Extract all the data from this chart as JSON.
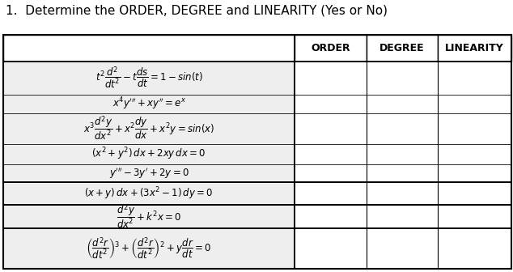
{
  "title": "1.  Determine the ORDER, DEGREE and LINEARITY (Yes or No)",
  "col_headers": [
    "ORDER",
    "DEGREE",
    "LINEARITY"
  ],
  "bg_color": "#ffffff",
  "text_color": "#000000",
  "fontsize_title": 11,
  "fontsize_header": 9
}
